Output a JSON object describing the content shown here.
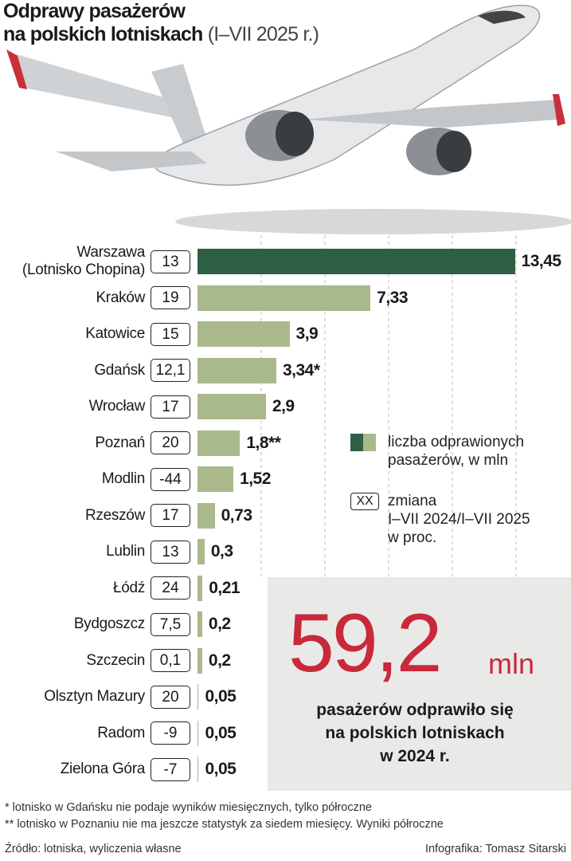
{
  "chart_data": {
    "type": "bar",
    "title": "Odprawy pasażerów",
    "title_line2": "na polskich lotniskach",
    "subtitle": "(I–VII 2025 r.)",
    "categories": [
      "Warszawa\n(Lotnisko Chopina)",
      "Kraków",
      "Katowice",
      "Gdańsk",
      "Wrocław",
      "Poznań",
      "Modlin",
      "Rzeszów",
      "Lublin",
      "Łódź",
      "Bydgoszcz",
      "Szczecin",
      "Olsztyn Mazury",
      "Radom",
      "Zielona Góra"
    ],
    "values": [
      13.45,
      7.33,
      3.9,
      3.34,
      2.9,
      1.8,
      1.52,
      0.73,
      0.3,
      0.21,
      0.2,
      0.2,
      0.05,
      0.05,
      0.05
    ],
    "value_labels": [
      "13,45",
      "7,33",
      "3,9",
      "3,34*",
      "2,9",
      "1,8**",
      "1,52",
      "0,73",
      "0,3",
      "0,21",
      "0,2",
      "0,2",
      "0,05",
      "0,05",
      "0,05"
    ],
    "changes": [
      "13",
      "19",
      "15",
      "12,1",
      "17",
      "20",
      "-44",
      "17",
      "13",
      "24",
      "7,5",
      "0,1",
      "20",
      "-9",
      "-7"
    ],
    "colors": [
      "#2f5f45",
      "#aab98c",
      "#aab98c",
      "#aab98c",
      "#aab98c",
      "#aab98c",
      "#aab98c",
      "#aab98c",
      "#aab98c",
      "#aab98c",
      "#aab98c",
      "#aab98c",
      "#aab98c",
      "#aab98c",
      "#aab98c"
    ],
    "xlim": [
      0,
      13.5
    ],
    "legend": {
      "bars": "liczba odprawionych\npasażerów, w mln",
      "change_box": "XX",
      "change": "zmiana\nI–VII 2024/I–VII 2025\nw proc."
    },
    "callout": {
      "number": "59,2",
      "unit": "mln",
      "text": "pasażerów odprawiło się\nna polskich lotniskach\nw 2024 r."
    },
    "footnotes": [
      "* lotnisko w Gdańsku nie podaje wyników miesięcznych, tylko półroczne",
      "** lotnisko w Poznaniu nie ma jeszcze statystyk za siedem miesięcy. Wyniki półroczne"
    ],
    "source": "Źródło: lotniska, wyliczenia własne",
    "credit": "Infografika: Tomasz Sitarski"
  }
}
